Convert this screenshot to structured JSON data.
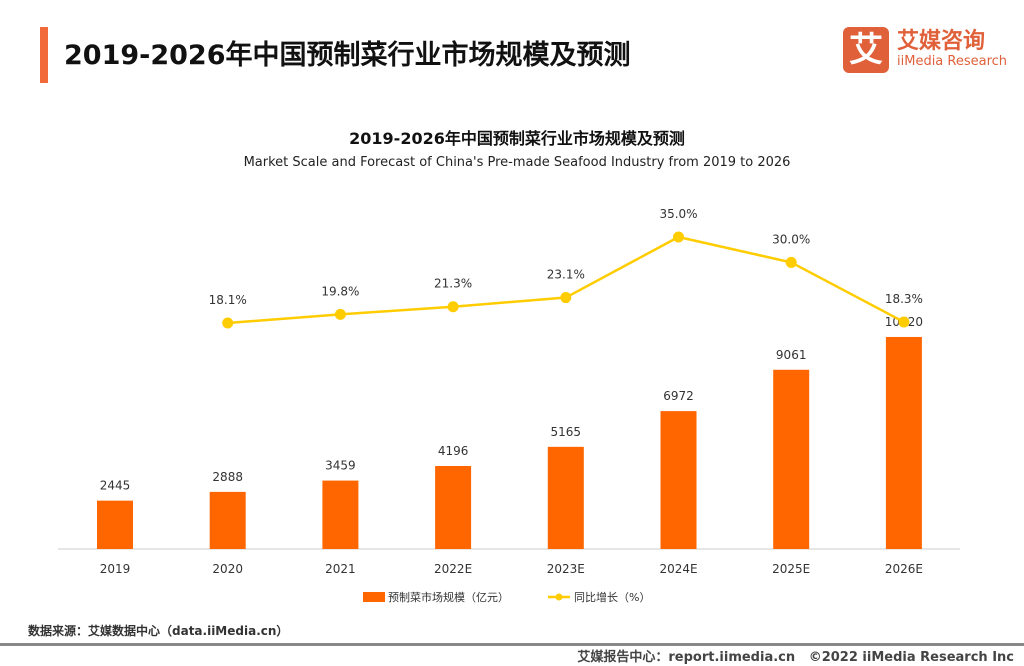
{
  "header": {
    "title": "2019-2026年中国预制菜行业市场规模及预测"
  },
  "logo": {
    "mark": "艾",
    "name_cn": "艾媒咨询",
    "name_en": "iiMedia Research"
  },
  "chart_data": {
    "type": "bar",
    "title": "2019-2026年中国预制菜行业市场规模及预测",
    "subtitle": "Market Scale and Forecast of China's Pre-made Seafood Industry from 2019 to 2026",
    "categories": [
      "2019",
      "2020",
      "2021",
      "2022E",
      "2023E",
      "2024E",
      "2025E",
      "2026E"
    ],
    "series": [
      {
        "name": "预制菜市场规模（亿元）",
        "type": "bar",
        "color": "#ff6600",
        "values": [
          2445,
          2888,
          3459,
          4196,
          5165,
          6972,
          9061,
          10720
        ]
      },
      {
        "name": "同比增长（%）",
        "type": "line",
        "color": "#ffcc00",
        "values": [
          null,
          18.1,
          19.8,
          21.3,
          23.1,
          35.0,
          30.0,
          18.3
        ],
        "labels": [
          "",
          "18.1%",
          "19.8%",
          "21.3%",
          "23.1%",
          "35.0%",
          "30.0%",
          "18.3%"
        ]
      }
    ],
    "legend": "bottom",
    "grid": false
  },
  "footer": {
    "source": "数据来源：艾媒数据中心（data.iiMedia.cn）",
    "report": "艾媒报告中心：report.iimedia.cn",
    "copyright": "©2022  iiMedia Research  Inc"
  }
}
